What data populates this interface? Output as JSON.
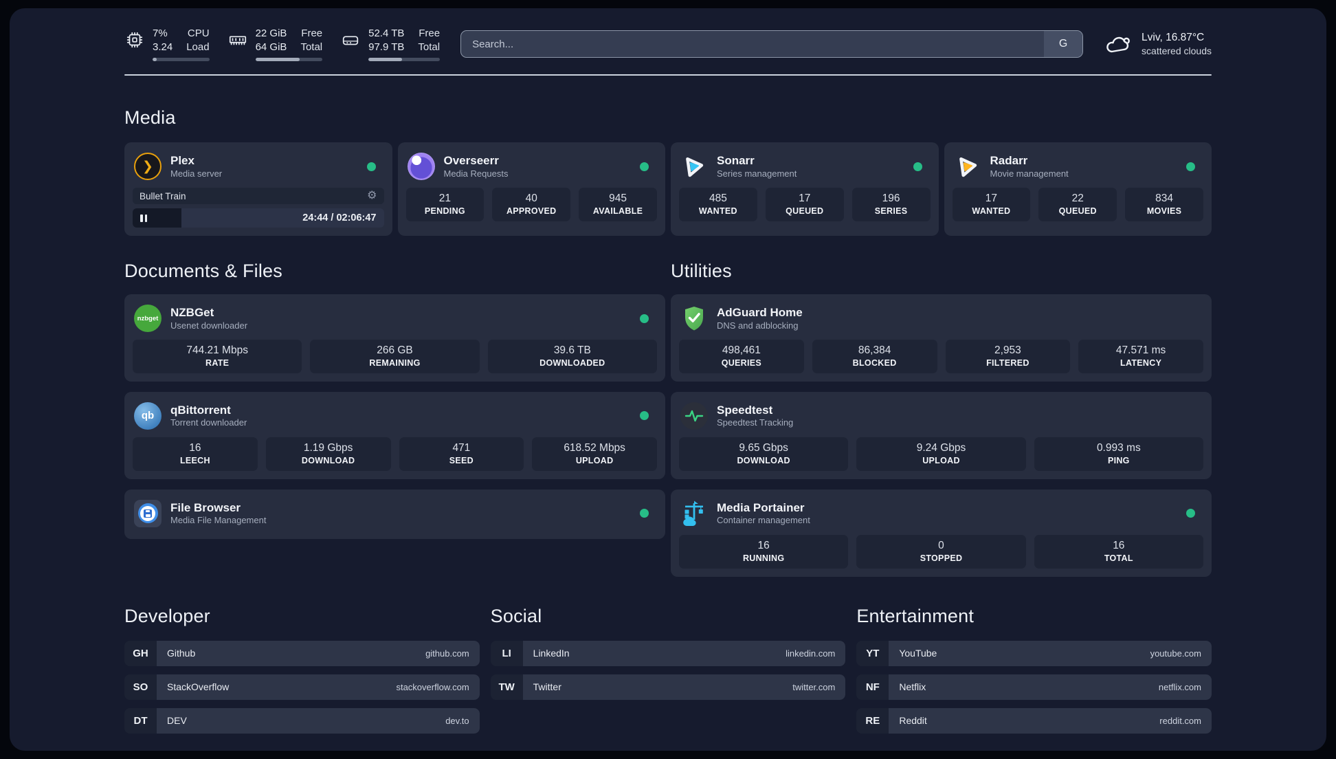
{
  "topbar": {
    "cpu": {
      "value_top": "7%",
      "value_bottom": "3.24",
      "label_top": "CPU",
      "label_bottom": "Load",
      "progress_pct": 7
    },
    "ram": {
      "value_top": "22 GiB",
      "value_bottom": "64 GiB",
      "label_top": "Free",
      "label_bottom": "Total",
      "progress_pct": 66
    },
    "disk": {
      "value_top": "52.4 TB",
      "value_bottom": "97.9 TB",
      "label_top": "Free",
      "label_bottom": "Total",
      "progress_pct": 47
    },
    "search": {
      "placeholder": "Search...",
      "engine": "G"
    },
    "weather": {
      "location_temp": "Lviv, 16.87°C",
      "condition": "scattered clouds"
    }
  },
  "media": {
    "title": "Media",
    "plex": {
      "name": "Plex",
      "subtitle": "Media server",
      "now_playing": {
        "title": "Bullet Train",
        "time": "24:44 / 02:06:47",
        "progress_pct": 19.5
      }
    },
    "overseerr": {
      "name": "Overseerr",
      "subtitle": "Media Requests",
      "stats": [
        {
          "value": "21",
          "label": "PENDING"
        },
        {
          "value": "40",
          "label": "APPROVED"
        },
        {
          "value": "945",
          "label": "AVAILABLE"
        }
      ]
    },
    "sonarr": {
      "name": "Sonarr",
      "subtitle": "Series management",
      "stats": [
        {
          "value": "485",
          "label": "WANTED"
        },
        {
          "value": "17",
          "label": "QUEUED"
        },
        {
          "value": "196",
          "label": "SERIES"
        }
      ]
    },
    "radarr": {
      "name": "Radarr",
      "subtitle": "Movie management",
      "stats": [
        {
          "value": "17",
          "label": "WANTED"
        },
        {
          "value": "22",
          "label": "QUEUED"
        },
        {
          "value": "834",
          "label": "MOVIES"
        }
      ]
    }
  },
  "documents": {
    "title": "Documents & Files",
    "nzbget": {
      "name": "NZBGet",
      "subtitle": "Usenet downloader",
      "icon_text": "nzbget",
      "stats": [
        {
          "value": "744.21 Mbps",
          "label": "RATE"
        },
        {
          "value": "266 GB",
          "label": "REMAINING"
        },
        {
          "value": "39.6 TB",
          "label": "DOWNLOADED"
        }
      ]
    },
    "qbittorrent": {
      "name": "qBittorrent",
      "subtitle": "Torrent downloader",
      "icon_text": "qb",
      "stats": [
        {
          "value": "16",
          "label": "LEECH"
        },
        {
          "value": "1.19 Gbps",
          "label": "DOWNLOAD"
        },
        {
          "value": "471",
          "label": "SEED"
        },
        {
          "value": "618.52 Mbps",
          "label": "UPLOAD"
        }
      ]
    },
    "filebrowser": {
      "name": "File Browser",
      "subtitle": "Media File Management"
    }
  },
  "utilities": {
    "title": "Utilities",
    "adguard": {
      "name": "AdGuard Home",
      "subtitle": "DNS and adblocking",
      "stats": [
        {
          "value": "498,461",
          "label": "QUERIES"
        },
        {
          "value": "86,384",
          "label": "BLOCKED"
        },
        {
          "value": "2,953",
          "label": "FILTERED"
        },
        {
          "value": "47.571 ms",
          "label": "LATENCY"
        }
      ]
    },
    "speedtest": {
      "name": "Speedtest",
      "subtitle": "Speedtest Tracking",
      "stats": [
        {
          "value": "9.65 Gbps",
          "label": "DOWNLOAD"
        },
        {
          "value": "9.24 Gbps",
          "label": "UPLOAD"
        },
        {
          "value": "0.993 ms",
          "label": "PING"
        }
      ]
    },
    "portainer": {
      "name": "Media Portainer",
      "subtitle": "Container management",
      "stats": [
        {
          "value": "16",
          "label": "RUNNING"
        },
        {
          "value": "0",
          "label": "STOPPED"
        },
        {
          "value": "16",
          "label": "TOTAL"
        }
      ]
    }
  },
  "bookmarks": {
    "developer": {
      "title": "Developer",
      "items": [
        {
          "abbr": "GH",
          "name": "Github",
          "url": "github.com"
        },
        {
          "abbr": "SO",
          "name": "StackOverflow",
          "url": "stackoverflow.com"
        },
        {
          "abbr": "DT",
          "name": "DEV",
          "url": "dev.to"
        }
      ]
    },
    "social": {
      "title": "Social",
      "items": [
        {
          "abbr": "LI",
          "name": "LinkedIn",
          "url": "linkedin.com"
        },
        {
          "abbr": "TW",
          "name": "Twitter",
          "url": "twitter.com"
        }
      ]
    },
    "entertainment": {
      "title": "Entertainment",
      "items": [
        {
          "abbr": "YT",
          "name": "YouTube",
          "url": "youtube.com"
        },
        {
          "abbr": "NF",
          "name": "Netflix",
          "url": "netflix.com"
        },
        {
          "abbr": "RE",
          "name": "Reddit",
          "url": "reddit.com"
        }
      ]
    }
  }
}
